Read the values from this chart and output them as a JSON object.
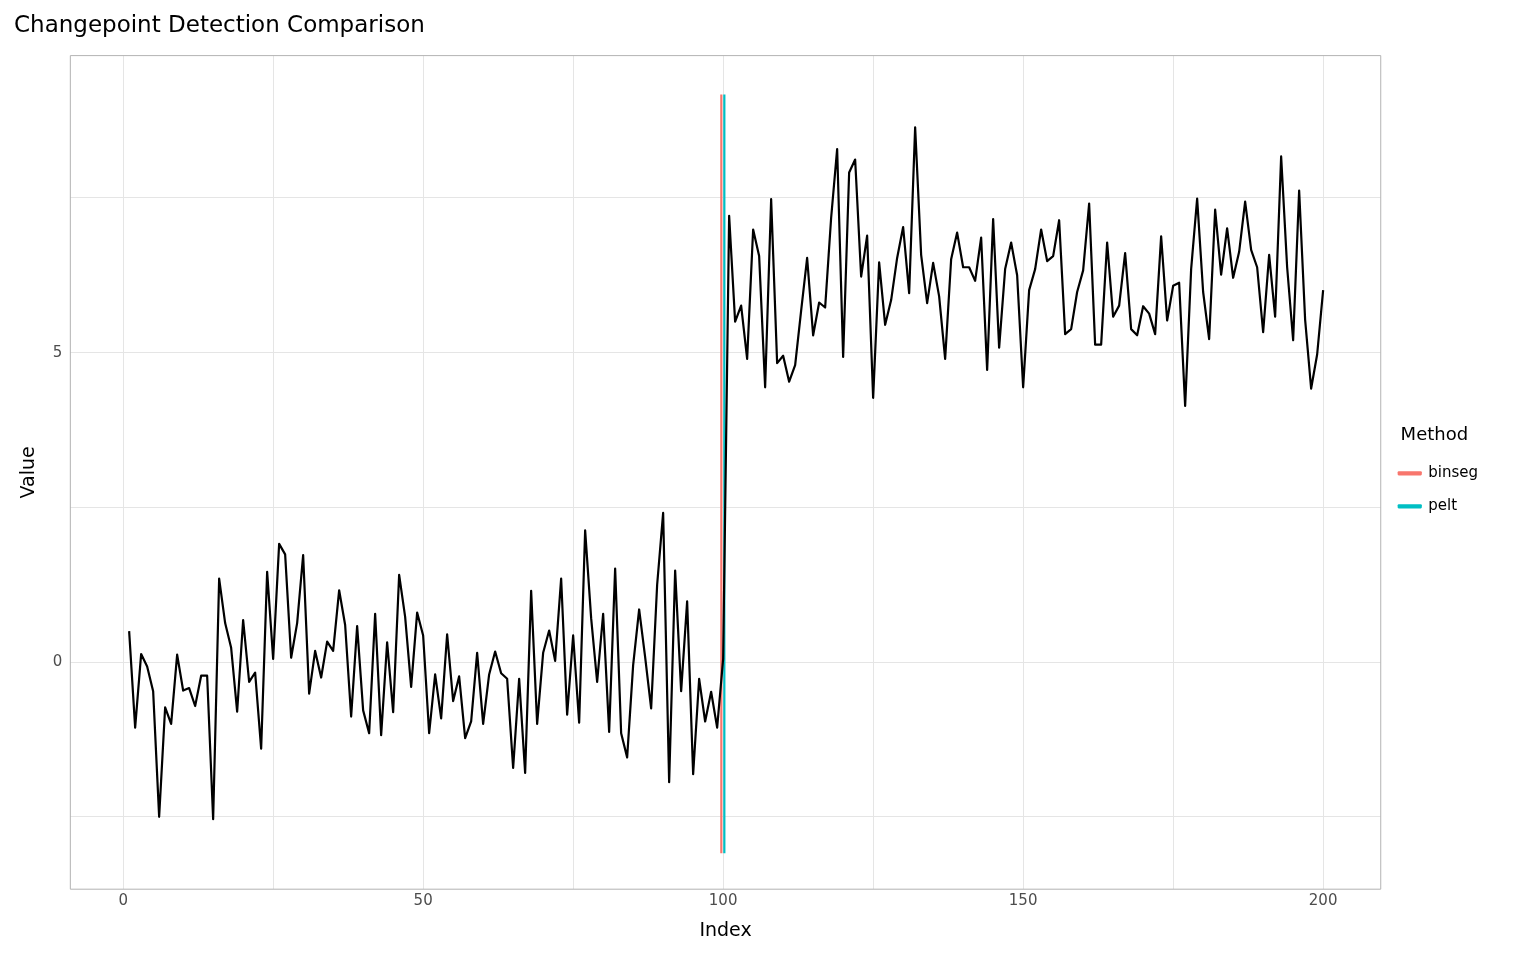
{
  "chart_data": {
    "type": "line",
    "title": "Changepoint Detection Comparison",
    "xlabel": "Index",
    "ylabel": "Value",
    "legend_title": "Method",
    "legend": "right",
    "grid": true,
    "marker": "none",
    "line_style": "solid",
    "xlim": [
      -8.8,
      209.6
    ],
    "xticks": [
      0,
      {
        "value": 25,
        "label": null
      },
      50,
      {
        "value": 75,
        "label": null
      },
      100,
      {
        "value": 125,
        "label": null
      },
      150,
      {
        "value": 175,
        "label": null
      },
      200
    ],
    "ylim": [
      -3.67,
      9.8
    ],
    "yticks": [
      {
        "value": -2.5,
        "label": null
      },
      0,
      {
        "value": 2.5,
        "label": null
      },
      5,
      {
        "value": 7.5,
        "label": null
      }
    ],
    "series": [
      {
        "color": "#000000",
        "x": [
          1,
          2,
          3,
          4,
          5,
          6,
          7,
          8,
          9,
          10,
          11,
          12,
          13,
          14,
          15,
          16,
          17,
          18,
          19,
          20,
          21,
          22,
          23,
          24,
          25,
          26,
          27,
          28,
          29,
          30,
          31,
          32,
          33,
          34,
          35,
          36,
          37,
          38,
          39,
          40,
          41,
          42,
          43,
          44,
          45,
          46,
          47,
          48,
          49,
          50,
          51,
          52,
          53,
          54,
          55,
          56,
          57,
          58,
          59,
          60,
          61,
          62,
          63,
          64,
          65,
          66,
          67,
          68,
          69,
          70,
          71,
          72,
          73,
          74,
          75,
          76,
          77,
          78,
          79,
          80,
          81,
          82,
          83,
          84,
          85,
          86,
          87,
          88,
          89,
          90,
          91,
          92,
          93,
          94,
          95,
          96,
          97,
          98,
          99,
          100,
          101,
          102,
          103,
          104,
          105,
          106,
          107,
          108,
          109,
          110,
          111,
          112,
          113,
          114,
          115,
          116,
          117,
          118,
          119,
          120,
          121,
          122,
          123,
          124,
          125,
          126,
          127,
          128,
          129,
          130,
          131,
          132,
          133,
          134,
          135,
          136,
          137,
          138,
          139,
          140,
          141,
          142,
          143,
          144,
          145,
          146,
          147,
          148,
          149,
          150,
          151,
          152,
          153,
          154,
          155,
          156,
          157,
          158,
          159,
          160,
          161,
          162,
          163,
          164,
          165,
          166,
          167,
          168,
          169,
          170,
          171,
          172,
          173,
          174,
          175,
          176,
          177,
          178,
          179,
          180,
          181,
          182,
          183,
          184,
          185,
          186,
          187,
          188,
          189,
          190,
          191,
          192,
          193,
          194,
          195,
          196,
          197,
          198,
          199,
          200
        ],
        "values": [
          0.5,
          -1.06,
          0.13,
          -0.07,
          -0.47,
          -2.5,
          -0.73,
          -1.0,
          0.12,
          -0.46,
          -0.42,
          -0.71,
          -0.22,
          -0.22,
          -2.54,
          1.35,
          0.63,
          0.23,
          -0.8,
          0.68,
          -0.32,
          -0.17,
          -1.4,
          1.46,
          0.05,
          1.91,
          1.74,
          0.07,
          0.63,
          1.73,
          -0.51,
          0.18,
          -0.25,
          0.33,
          0.18,
          1.16,
          0.6,
          -0.88,
          0.58,
          -0.78,
          -1.15,
          0.78,
          -1.18,
          0.32,
          -0.81,
          1.41,
          0.73,
          -0.4,
          0.8,
          0.43,
          -1.15,
          -0.2,
          -0.91,
          0.45,
          -0.63,
          -0.23,
          -1.23,
          -0.96,
          0.15,
          -1.0,
          -0.2,
          0.17,
          -0.18,
          -0.27,
          -1.71,
          -0.27,
          -1.79,
          1.15,
          -1.0,
          0.15,
          0.51,
          0.02,
          1.35,
          -0.85,
          0.43,
          -0.98,
          2.13,
          0.71,
          -0.32,
          0.78,
          -1.13,
          1.51,
          -1.15,
          -1.54,
          -0.05,
          0.85,
          0.08,
          -0.75,
          1.25,
          2.41,
          -1.94,
          1.48,
          -0.47,
          0.98,
          -1.81,
          -0.27,
          -0.96,
          -0.48,
          -1.06,
          0.05,
          7.21,
          5.5,
          5.76,
          4.9,
          6.99,
          6.56,
          4.44,
          7.48,
          4.83,
          4.95,
          4.53,
          4.8,
          5.68,
          6.53,
          5.28,
          5.81,
          5.73,
          7.18,
          8.29,
          4.93,
          7.91,
          8.12,
          6.23,
          6.89,
          4.27,
          6.46,
          5.45,
          5.85,
          6.53,
          7.03,
          5.96,
          8.64,
          6.58,
          5.8,
          6.45,
          5.91,
          4.9,
          6.51,
          6.94,
          6.38,
          6.38,
          6.16,
          6.86,
          4.72,
          7.16,
          5.08,
          6.35,
          6.78,
          6.25,
          4.44,
          6.01,
          6.35,
          6.99,
          6.48,
          6.56,
          7.14,
          5.3,
          5.38,
          5.98,
          6.33,
          7.41,
          5.13,
          5.13,
          6.78,
          5.58,
          5.76,
          6.61,
          5.38,
          5.28,
          5.75,
          5.63,
          5.3,
          6.88,
          5.52,
          6.08,
          6.13,
          4.14,
          6.35,
          7.49,
          5.98,
          5.22,
          7.31,
          6.26,
          7.01,
          6.21,
          6.63,
          7.44,
          6.66,
          6.38,
          5.33,
          6.58,
          5.58,
          8.17,
          6.38,
          5.2,
          7.62,
          5.53,
          4.42,
          4.97,
          6.01
        ]
      },
      {
        "name": "binseg",
        "color": "#f8766d",
        "x": [
          99.7,
          99.7
        ],
        "values": [
          -3.09,
          9.17
        ]
      },
      {
        "name": "pelt",
        "color": "#00bfc4",
        "x": [
          100.2,
          100.2
        ],
        "values": [
          -3.09,
          9.17
        ]
      }
    ]
  }
}
